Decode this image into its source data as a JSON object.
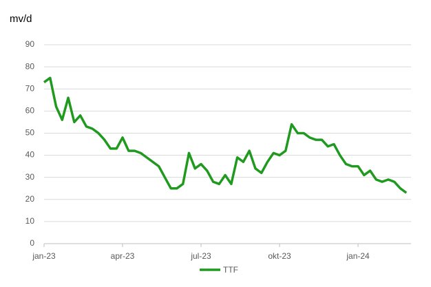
{
  "chart_data": {
    "type": "line",
    "y_label": "mv/d",
    "categories": [
      "jan-23",
      null,
      null,
      null,
      null,
      null,
      null,
      null,
      null,
      null,
      null,
      null,
      null,
      "apr-23",
      null,
      null,
      null,
      null,
      null,
      null,
      null,
      null,
      null,
      null,
      null,
      null,
      "jul-23",
      null,
      null,
      null,
      null,
      null,
      null,
      null,
      null,
      null,
      null,
      null,
      null,
      "okt-23",
      null,
      null,
      null,
      null,
      null,
      null,
      null,
      null,
      null,
      null,
      null,
      null,
      "jan-24",
      null,
      null,
      null,
      null,
      null,
      null,
      null,
      null
    ],
    "series": [
      {
        "name": "TTF",
        "color": "#1f9a1f",
        "values": [
          73,
          75,
          62,
          56,
          66,
          55,
          58,
          53,
          52,
          50,
          47,
          43,
          43,
          48,
          42,
          42,
          41,
          39,
          37,
          35,
          30,
          25,
          25,
          27,
          41,
          34,
          36,
          33,
          28,
          27,
          31,
          27,
          39,
          37,
          42,
          34,
          32,
          37,
          41,
          40,
          42,
          54,
          50,
          50,
          48,
          47,
          47,
          44,
          45,
          40,
          36,
          35,
          35,
          31,
          33,
          29,
          28,
          29,
          28,
          25,
          23
        ]
      }
    ],
    "ylim": [
      0,
      90
    ],
    "yticks": [
      0,
      10,
      20,
      30,
      40,
      50,
      60,
      70,
      80,
      90
    ],
    "grid": true,
    "legend": "bottom"
  }
}
